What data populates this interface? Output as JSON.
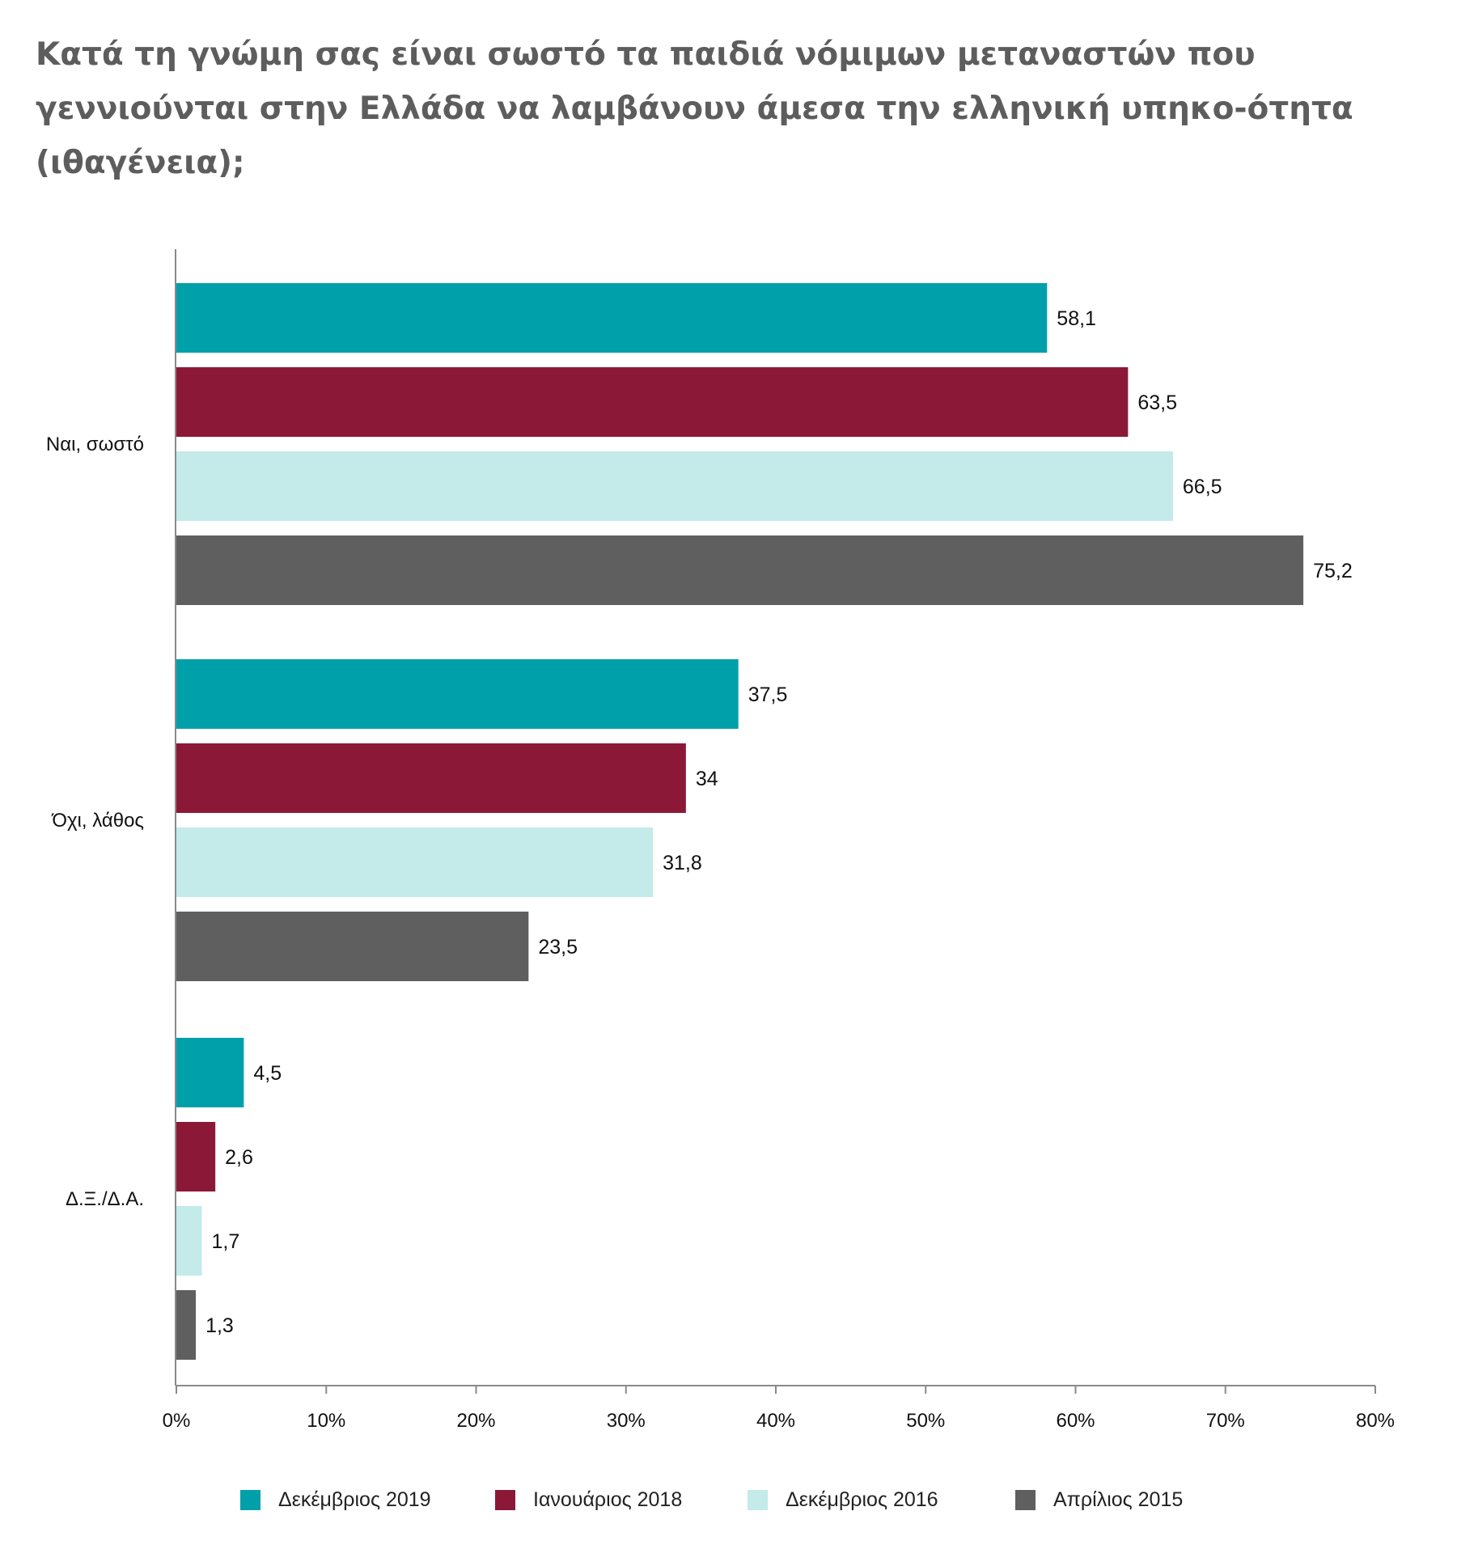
{
  "chart_data": {
    "type": "bar",
    "orientation": "horizontal",
    "title": "Κατά τη γνώμη σας είναι σωστό τα παιδιά νόμιμων μεταναστών που γεννιούνται στην Ελλάδα να λαμβάνουν άμεσα την ελληνική υπηκο-ότητα (ιθαγένεια);",
    "categories": [
      "Ναι, σωστό",
      "Όχι, λάθος",
      "Δ.Ξ./Δ.Α."
    ],
    "series": [
      {
        "name": "Δεκέμβριος 2019",
        "color": "#00a0ab",
        "values": [
          58.1,
          37.5,
          4.5
        ],
        "labels": [
          "58,1",
          "37,5",
          "4,5"
        ]
      },
      {
        "name": "Ιανουάριος 2018",
        "color": "#8c1838",
        "values": [
          63.5,
          34,
          2.6
        ],
        "labels": [
          "63,5",
          "34",
          "2,6"
        ]
      },
      {
        "name": "Δεκέμβριος 2016",
        "color": "#c4eaea",
        "values": [
          66.5,
          31.8,
          1.7
        ],
        "labels": [
          "66,5",
          "31,8",
          "1,7"
        ]
      },
      {
        "name": "Απρίλιος 2015",
        "color": "#5f5f5f",
        "values": [
          75.2,
          23.5,
          1.3
        ],
        "labels": [
          "75,2",
          "23,5",
          "1,3"
        ]
      }
    ],
    "xlim": [
      0,
      80
    ],
    "xticks": [
      0,
      10,
      20,
      30,
      40,
      50,
      60,
      70,
      80
    ],
    "xtick_labels": [
      "0%",
      "10%",
      "20%",
      "30%",
      "40%",
      "50%",
      "60%",
      "70%",
      "80%"
    ],
    "grid": false,
    "legend_position": "bottom"
  }
}
